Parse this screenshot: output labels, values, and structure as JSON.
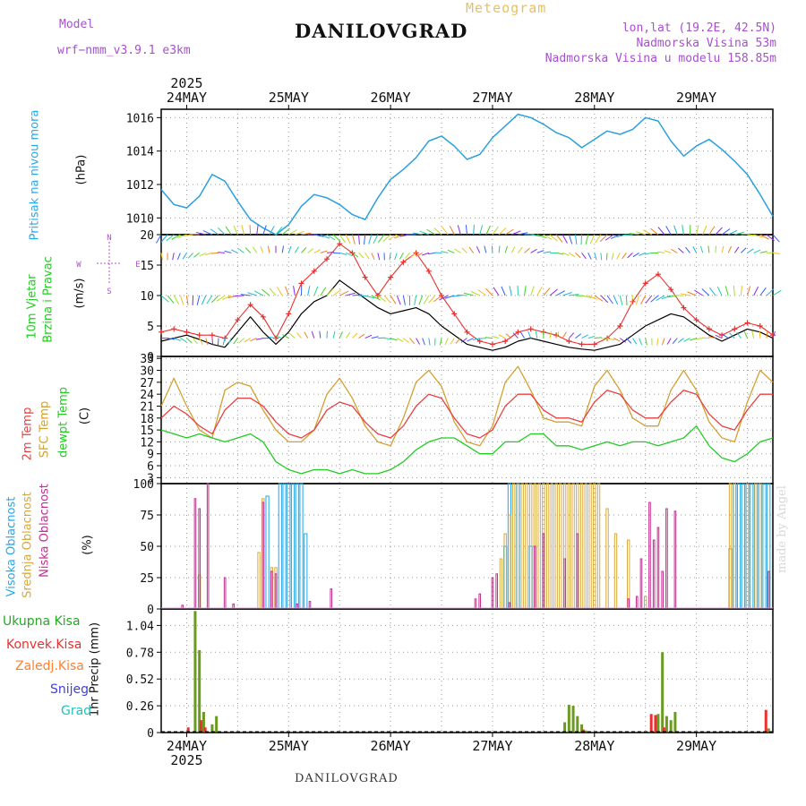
{
  "header": {
    "model_label": "Model",
    "model_name": "wrf−nmm_v3.9.1  e3km",
    "station": "DANILOVGRAD",
    "meteogram": "Meteogram",
    "coords": "lon,lat (19.2E, 42.5N)",
    "elevation": "Nadmorska Visina 53m",
    "model_elevation": "Nadmorska Visina u modelu 158.85m"
  },
  "footer": {
    "station": "DANILOVGRAD",
    "watermark": "made by Angel"
  },
  "time_axis": {
    "year": "2025",
    "days": [
      "24MAY",
      "25MAY",
      "26MAY",
      "27MAY",
      "28MAY",
      "29MAY"
    ]
  },
  "panel_labels": {
    "pressure": [
      "Pritisak na nivou mora",
      "(hPa)"
    ],
    "wind": [
      "10m Vjetar",
      "Brzina i Pravac",
      "(m/s)"
    ],
    "temp": [
      "2m Temp",
      "SFC Temp",
      "dewpt Temp",
      "(C)"
    ],
    "cloud": [
      "Visoka Oblacnost",
      "Srednja Oblacnost",
      "Niska  Oblacnost",
      "(%)"
    ],
    "precip": [
      "1hr Precip (mm)"
    ]
  },
  "precip_legend": [
    "Ukupna  Kisa",
    "Konvek.Kisa",
    "Zaledj.Kisa",
    "Snijeg",
    "Grad"
  ],
  "wind_compass": {
    "n": "N",
    "w": "W",
    "e": "E",
    "s": "S"
  },
  "colors": {
    "pressure": "#2aa0e0",
    "wind_speed": "#000000",
    "wind_gust": "#e83030",
    "t2m": "#e84040",
    "tsfc": "#d4a030",
    "dewpt": "#22cc22",
    "cloud_high": "#20a8e8",
    "cloud_mid": "#d8a838",
    "cloud_low": "#c03090",
    "precip_total": "#6a9a20",
    "precip_conv": "#e83030",
    "precip_frz": "#ff8030",
    "precip_snow": "#4040e0",
    "precip_grad": "#20c0c0"
  },
  "chart_data": [
    {
      "type": "line",
      "title": "Pritisak na nivou mora",
      "ylabel": "(hPa)",
      "ylim": [
        1009,
        1016.5
      ],
      "yticks": [
        1010,
        1012,
        1014,
        1016
      ],
      "x_hours": [
        0,
        3,
        6,
        9,
        12,
        15,
        18,
        21,
        24,
        27,
        30,
        33,
        36,
        39,
        42,
        45,
        48,
        51,
        54,
        57,
        60,
        63,
        66,
        69,
        72,
        75,
        78,
        81,
        84,
        87,
        90,
        93,
        96,
        99,
        102,
        105,
        108,
        111,
        114,
        117,
        120,
        123,
        126,
        129,
        132,
        135,
        138,
        141,
        144
      ],
      "series": [
        {
          "name": "SLP",
          "values": [
            1011.7,
            1010.8,
            1010.6,
            1011.3,
            1012.6,
            1012.2,
            1011.0,
            1009.9,
            1009.4,
            1009.0,
            1009.6,
            1010.7,
            1011.4,
            1011.2,
            1010.8,
            1010.2,
            1009.9,
            1011.2,
            1012.3,
            1012.9,
            1013.6,
            1014.6,
            1014.9,
            1014.3,
            1013.5,
            1013.8,
            1014.8,
            1015.5,
            1016.2,
            1016.0,
            1015.6,
            1015.1,
            1014.8,
            1014.2,
            1014.7,
            1015.2,
            1015.0,
            1015.3,
            1016.0,
            1015.8,
            1014.6,
            1013.7,
            1014.3,
            1014.7,
            1014.1,
            1013.4,
            1012.6,
            1011.4,
            1010.1
          ]
        }
      ]
    },
    {
      "type": "line",
      "title": "10m Vjetar Brzina i Pravac",
      "ylabel": "(m/s)",
      "ylim": [
        0,
        20
      ],
      "yticks": [
        0,
        5,
        10,
        15,
        20
      ],
      "x_hours": [
        0,
        3,
        6,
        9,
        12,
        15,
        18,
        21,
        24,
        27,
        30,
        33,
        36,
        39,
        42,
        45,
        48,
        51,
        54,
        57,
        60,
        63,
        66,
        69,
        72,
        75,
        78,
        81,
        84,
        87,
        90,
        93,
        96,
        99,
        102,
        105,
        108,
        111,
        114,
        117,
        120,
        123,
        126,
        129,
        132,
        135,
        138,
        141,
        144
      ],
      "series": [
        {
          "name": "speed",
          "values": [
            2.5,
            3.0,
            3.5,
            2.8,
            2.0,
            1.5,
            4.0,
            6.5,
            4.0,
            2.0,
            4.0,
            7.0,
            9.0,
            10.0,
            12.5,
            11.0,
            9.5,
            8.0,
            7.0,
            7.5,
            8.0,
            7.0,
            5.0,
            3.5,
            2.0,
            1.5,
            1.0,
            1.5,
            2.5,
            3.0,
            2.5,
            2.0,
            1.5,
            1.2,
            1.0,
            1.5,
            2.0,
            3.5,
            5.0,
            6.0,
            7.0,
            6.5,
            5.0,
            3.5,
            2.5,
            3.5,
            4.5,
            4.0,
            3.0
          ]
        },
        {
          "name": "gust",
          "values": [
            4.0,
            4.5,
            4.0,
            3.5,
            3.5,
            3.0,
            6.0,
            8.5,
            6.5,
            3.0,
            7.0,
            12.0,
            14.0,
            16.0,
            18.5,
            17.0,
            13.0,
            10.0,
            13.0,
            15.5,
            17.0,
            14.0,
            10.0,
            7.0,
            4.0,
            2.5,
            2.0,
            2.5,
            4.0,
            4.5,
            4.0,
            3.5,
            2.5,
            2.0,
            2.0,
            3.0,
            5.0,
            9.0,
            12.0,
            13.5,
            11.0,
            8.0,
            6.0,
            4.5,
            3.5,
            4.5,
            5.5,
            5.0,
            3.5
          ]
        }
      ]
    },
    {
      "type": "line",
      "title": "2m Temp / SFC Temp / dewpt Temp",
      "ylabel": "(C)",
      "ylim": [
        1.5,
        33.5
      ],
      "yticks": [
        3,
        6,
        9,
        12,
        15,
        18,
        21,
        24,
        27,
        30,
        33
      ],
      "x_hours": [
        0,
        3,
        6,
        9,
        12,
        15,
        18,
        21,
        24,
        27,
        30,
        33,
        36,
        39,
        42,
        45,
        48,
        51,
        54,
        57,
        60,
        63,
        66,
        69,
        72,
        75,
        78,
        81,
        84,
        87,
        90,
        93,
        96,
        99,
        102,
        105,
        108,
        111,
        114,
        117,
        120,
        123,
        126,
        129,
        132,
        135,
        138,
        141,
        144
      ],
      "series": [
        {
          "name": "2m Temp",
          "values": [
            18,
            21,
            19,
            16,
            14,
            20,
            23,
            23,
            21,
            17,
            14,
            13,
            15,
            20,
            22,
            21,
            17,
            14,
            13,
            16,
            21,
            24,
            23,
            18,
            14,
            13,
            15,
            21,
            24,
            24,
            20,
            18,
            18,
            17,
            22,
            25,
            24,
            20,
            18,
            18,
            22,
            25,
            24,
            19,
            16,
            15,
            20,
            24,
            24
          ]
        },
        {
          "name": "SFC Temp",
          "values": [
            21,
            28,
            21,
            15,
            13,
            25,
            27,
            26,
            20,
            15,
            12,
            12,
            15,
            24,
            28,
            23,
            16,
            12,
            11,
            18,
            27,
            30,
            26,
            17,
            12,
            11,
            16,
            27,
            31,
            25,
            18,
            17,
            17,
            16,
            26,
            30,
            25,
            18,
            16,
            16,
            25,
            30,
            25,
            17,
            13,
            12,
            22,
            30,
            27
          ]
        },
        {
          "name": "dewpt Temp",
          "values": [
            15,
            14,
            13,
            14,
            13,
            12,
            13,
            14,
            12,
            7,
            5,
            4,
            5,
            5,
            4,
            5,
            4,
            4,
            5,
            7,
            10,
            12,
            13,
            13,
            11,
            9,
            9,
            12,
            12,
            14,
            14,
            11,
            11,
            10,
            11,
            12,
            11,
            12,
            12,
            11,
            12,
            13,
            16,
            11,
            8,
            7,
            9,
            12,
            13
          ]
        }
      ]
    },
    {
      "type": "bar",
      "title": "Visoka / Srednja / Niska Oblacnost",
      "ylabel": "(%)",
      "ylim": [
        0,
        100
      ],
      "yticks": [
        0,
        25,
        50,
        75,
        100
      ],
      "series": [
        {
          "name": "Visoka Oblacnost",
          "bars": [
            [
              25,
              90
            ],
            [
              28,
              100
            ],
            [
              29,
              100
            ],
            [
              30,
              100
            ],
            [
              31,
              100
            ],
            [
              32,
              100
            ],
            [
              33,
              100
            ],
            [
              34,
              60
            ],
            [
              81,
              50
            ],
            [
              82,
              100
            ],
            [
              84,
              100
            ],
            [
              87,
              50
            ],
            [
              134,
              48
            ],
            [
              135,
              100
            ],
            [
              136,
              100
            ],
            [
              137,
              100
            ],
            [
              138,
              100
            ],
            [
              139,
              100
            ],
            [
              140,
              100
            ],
            [
              141,
              100
            ],
            [
              142,
              100
            ],
            [
              143,
              100
            ]
          ]
        },
        {
          "name": "Srednja Oblacnost",
          "bars": [
            [
              9,
              27
            ],
            [
              23,
              45
            ],
            [
              24,
              88
            ],
            [
              26,
              33
            ],
            [
              27,
              33
            ],
            [
              80,
              40
            ],
            [
              81,
              60
            ],
            [
              82,
              75
            ],
            [
              83,
              100
            ],
            [
              84,
              100
            ],
            [
              85,
              100
            ],
            [
              86,
              100
            ],
            [
              87,
              100
            ],
            [
              88,
              100
            ],
            [
              89,
              100
            ],
            [
              90,
              100
            ],
            [
              91,
              100
            ],
            [
              92,
              100
            ],
            [
              93,
              100
            ],
            [
              94,
              100
            ],
            [
              95,
              100
            ],
            [
              96,
              100
            ],
            [
              97,
              100
            ],
            [
              98,
              100
            ],
            [
              99,
              100
            ],
            [
              100,
              100
            ],
            [
              101,
              100
            ],
            [
              102,
              100
            ],
            [
              103,
              100
            ],
            [
              105,
              80
            ],
            [
              107,
              60
            ],
            [
              110,
              55
            ],
            [
              114,
              10
            ],
            [
              134,
              100
            ],
            [
              135,
              100
            ],
            [
              138,
              100
            ],
            [
              140,
              100
            ],
            [
              141,
              100
            ]
          ]
        },
        {
          "name": "Niska  Oblacnost",
          "bars": [
            [
              5,
              3
            ],
            [
              8,
              88
            ],
            [
              9,
              80
            ],
            [
              11,
              100
            ],
            [
              15,
              25
            ],
            [
              17,
              4
            ],
            [
              24,
              85
            ],
            [
              26,
              30
            ],
            [
              27,
              28
            ],
            [
              32,
              4
            ],
            [
              35,
              6
            ],
            [
              40,
              16
            ],
            [
              74,
              8
            ],
            [
              75,
              12
            ],
            [
              78,
              25
            ],
            [
              79,
              28
            ],
            [
              82,
              5
            ],
            [
              88,
              50
            ],
            [
              90,
              60
            ],
            [
              95,
              40
            ],
            [
              98,
              60
            ],
            [
              110,
              8
            ],
            [
              112,
              10
            ],
            [
              113,
              40
            ],
            [
              115,
              85
            ],
            [
              116,
              55
            ],
            [
              117,
              65
            ],
            [
              118,
              30
            ],
            [
              119,
              80
            ],
            [
              121,
              78
            ],
            [
              143,
              30
            ]
          ]
        }
      ]
    },
    {
      "type": "bar",
      "title": "1hr Precip",
      "ylabel": "1hr Precip (mm)",
      "ylim": [
        0,
        1.2
      ],
      "yticks": [
        0,
        0.26,
        0.52,
        0.78,
        1.04
      ],
      "series": [
        {
          "name": "Ukupna  Kisa",
          "bars": [
            [
              8,
              1.18
            ],
            [
              9,
              0.8
            ],
            [
              10,
              0.2
            ],
            [
              12,
              0.08
            ],
            [
              13,
              0.16
            ],
            [
              95,
              0.1
            ],
            [
              96,
              0.27
            ],
            [
              97,
              0.26
            ],
            [
              98,
              0.16
            ],
            [
              99,
              0.08
            ],
            [
              100,
              0.02
            ],
            [
              117,
              0.18
            ],
            [
              118,
              0.78
            ],
            [
              119,
              0.16
            ],
            [
              120,
              0.12
            ],
            [
              121,
              0.2
            ],
            [
              143,
              0.04
            ]
          ]
        },
        {
          "name": "Konvek.Kisa",
          "bars": [
            [
              7,
              0.05
            ],
            [
              10,
              0.12
            ],
            [
              11,
              0.05
            ],
            [
              100,
              0.03
            ],
            [
              116,
              0.18
            ],
            [
              117,
              0.17
            ],
            [
              119,
              0.05
            ],
            [
              143,
              0.22
            ]
          ]
        }
      ]
    }
  ]
}
